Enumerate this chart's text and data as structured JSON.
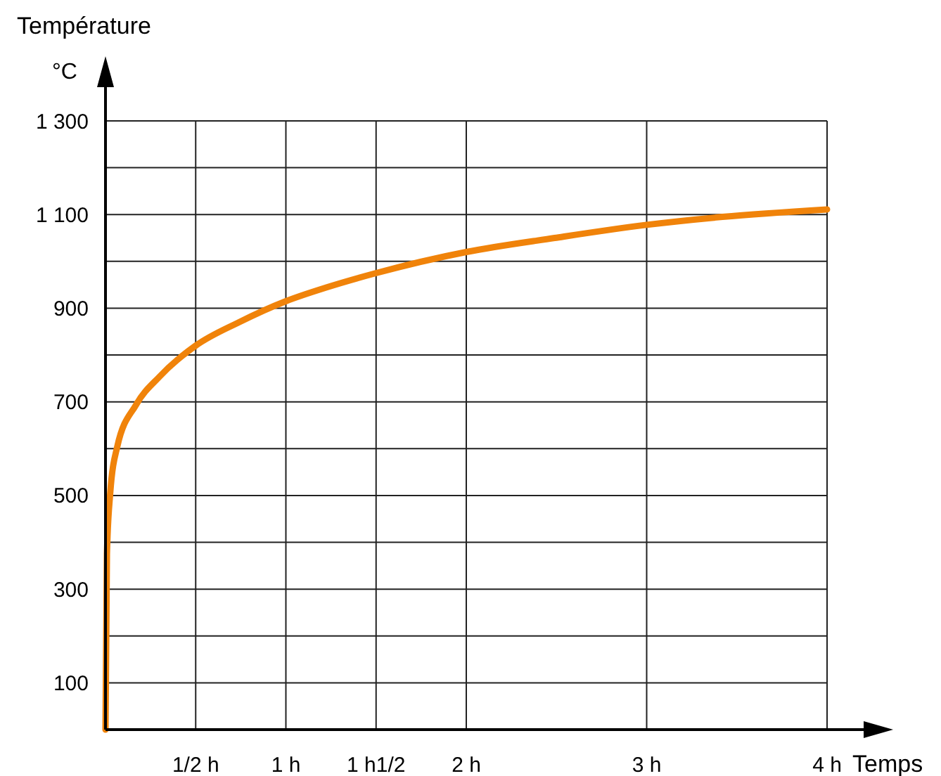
{
  "chart_data": {
    "type": "line",
    "xlabel": "Temps",
    "ylabel": "Température",
    "annotations": [
      "°C"
    ],
    "x": [
      0,
      0.008,
      0.026,
      0.065,
      0.17,
      0.3,
      0.5,
      0.74,
      1.0,
      1.23,
      1.5,
      2.0,
      2.49,
      3.0,
      3.42,
      4.0
    ],
    "series": [
      {
        "color": "#f0830a",
        "values": [
          0,
          375,
          504,
          604,
          694,
          754,
          820,
          870,
          915,
          945,
          975,
          1020,
          1050,
          1078,
          1095,
          1111
        ]
      }
    ],
    "xlim": [
      0,
      4
    ],
    "ylim": [
      0,
      1300
    ],
    "xticks": [
      {
        "value": 0.5,
        "label": "1/2 h"
      },
      {
        "value": 1,
        "label": "1 h"
      },
      {
        "value": 1.5,
        "label": "1 h1/2"
      },
      {
        "value": 2,
        "label": "2 h"
      },
      {
        "value": 3,
        "label": "3 h"
      },
      {
        "value": 4,
        "label": "4 h"
      }
    ],
    "yticks": [
      {
        "value": 100,
        "label": "100"
      },
      {
        "value": 200,
        "label": null
      },
      {
        "value": 300,
        "label": "300"
      },
      {
        "value": 400,
        "label": null
      },
      {
        "value": 500,
        "label": "500"
      },
      {
        "value": 600,
        "label": null
      },
      {
        "value": 700,
        "label": "700"
      },
      {
        "value": 800,
        "label": null
      },
      {
        "value": 900,
        "label": "900"
      },
      {
        "value": 1000,
        "label": null
      },
      {
        "value": 1100,
        "label": "1 100"
      },
      {
        "value": 1200,
        "label": null
      },
      {
        "value": 1300,
        "label": "1 300"
      }
    ],
    "grid": true,
    "marker": "none",
    "line_style": "solid"
  }
}
